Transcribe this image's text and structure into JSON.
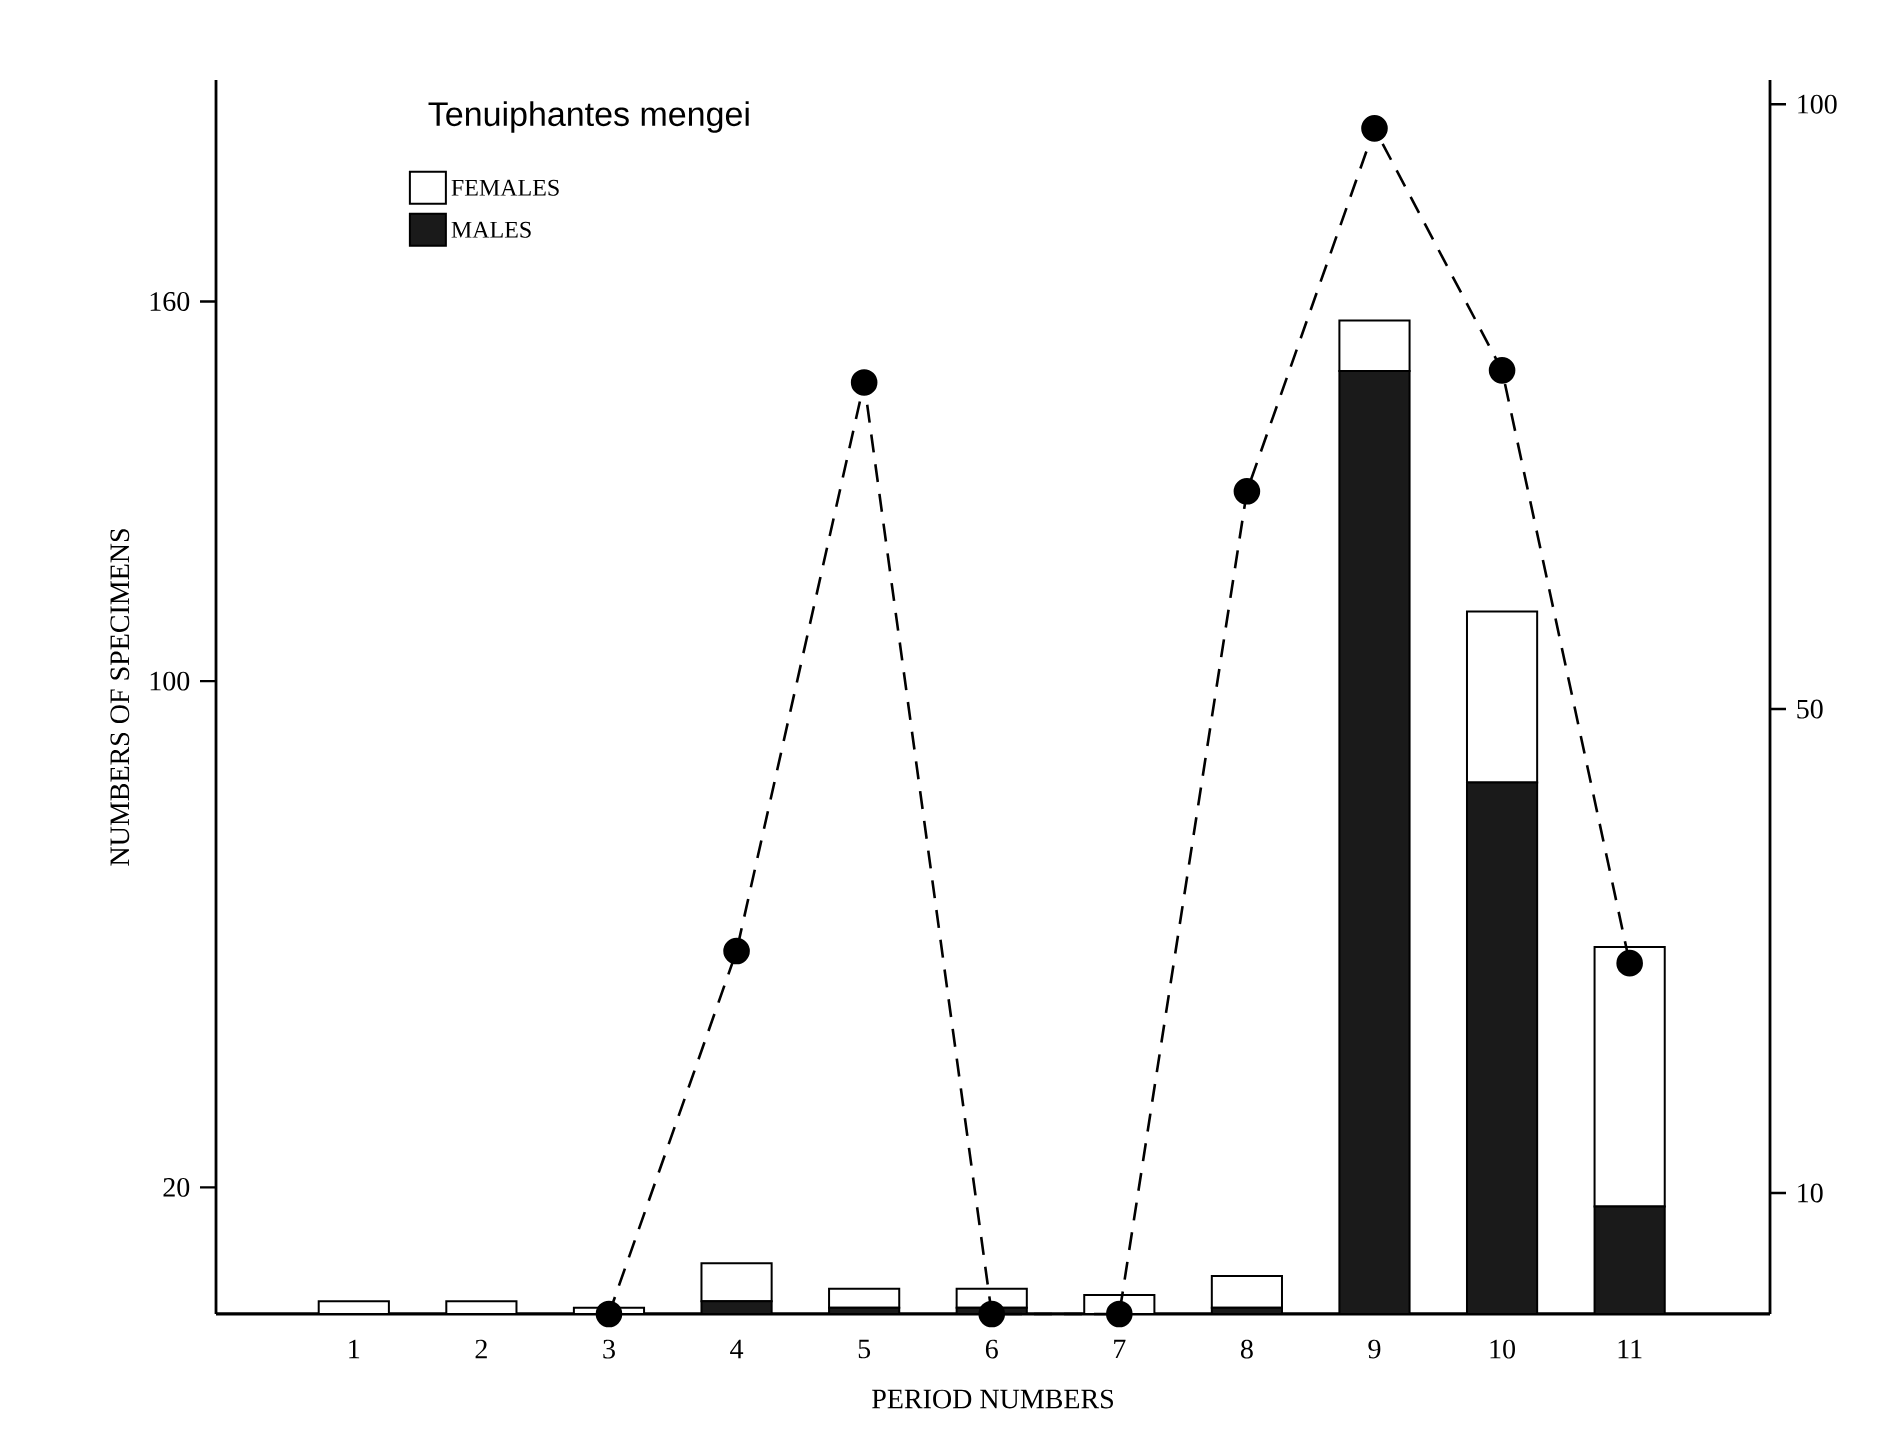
{
  "chart_data": {
    "type": "bar",
    "title": "Tenuiphantes mengei",
    "xlabel": "PERIOD NUMBERS",
    "ylabel": "NUMBERS OF SPECIMENS",
    "categories": [
      "1",
      "2",
      "3",
      "4",
      "5",
      "6",
      "7",
      "8",
      "9",
      "10",
      "11"
    ],
    "stacked": true,
    "legend": "top left",
    "marker": "circle",
    "line_style": "dashed",
    "ylim": [
      0,
      195
    ],
    "yticks": [
      20,
      100,
      160
    ],
    "y2lim": [
      0,
      102
    ],
    "y2ticks": [
      10,
      50,
      100
    ],
    "series": [
      {
        "name": "MALES",
        "color": "#1a1a1a",
        "values": [
          0,
          0,
          0,
          2,
          1,
          1,
          0,
          1,
          149,
          84,
          17
        ]
      },
      {
        "name": "FEMALES",
        "color": "#ffffff",
        "values": [
          2,
          2,
          1,
          6,
          3,
          3,
          3,
          5,
          8,
          27,
          41
        ]
      },
      {
        "type": "line",
        "axis": "y2",
        "color": "#000000",
        "values": [
          null,
          null,
          0,
          30,
          77,
          0,
          0,
          68,
          98,
          78,
          29
        ]
      }
    ]
  }
}
